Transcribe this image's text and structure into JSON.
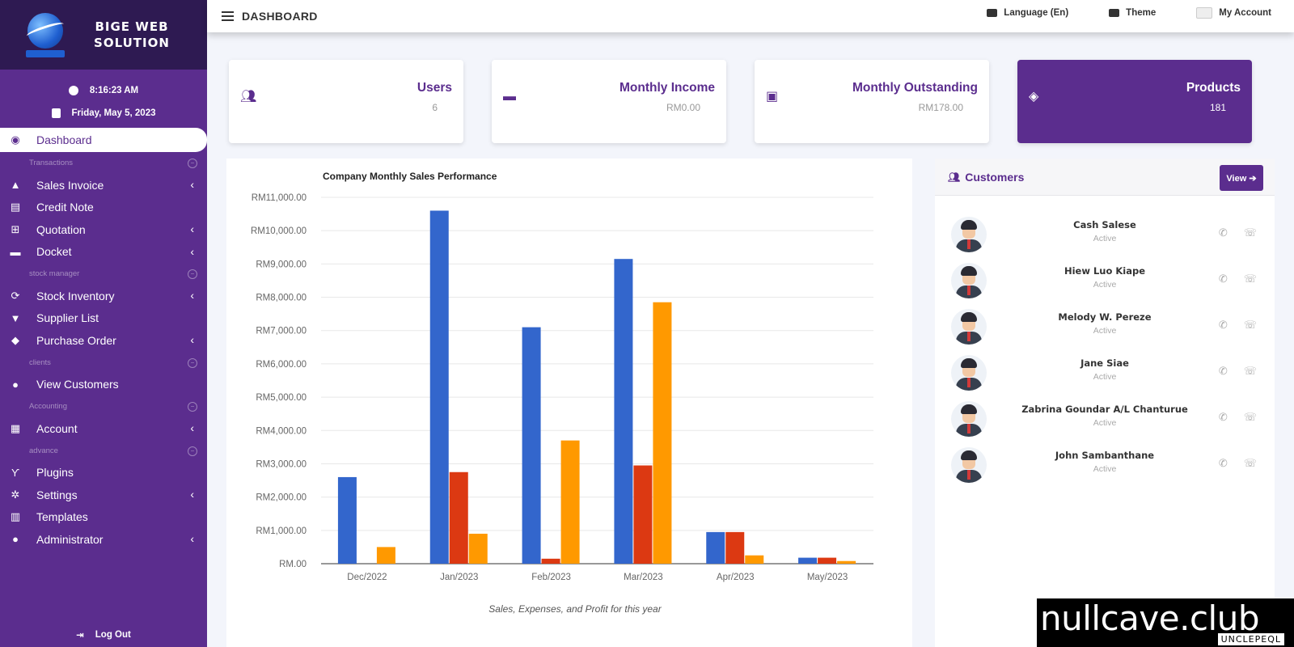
{
  "brand": {
    "title_line1": "BIGE WEB",
    "title_line2": "SOLUTION"
  },
  "clock": {
    "time": "8:16:23 AM",
    "date": "Friday, May 5, 2023"
  },
  "header": {
    "page_title": "DASHBOARD",
    "language": "Language (En)",
    "theme": "Theme",
    "account": "My Account"
  },
  "sidebar": {
    "dashboard": "Dashboard",
    "sections": {
      "transactions": "Transactions",
      "stock": "stock manager",
      "clients": "clients",
      "accounting": "Accounting",
      "advance": "advance"
    },
    "items": {
      "sales_invoice": "Sales Invoice",
      "credit_note": "Credit Note",
      "quotation": "Quotation",
      "docket": "Docket",
      "stock_inventory": "Stock Inventory",
      "supplier_list": "Supplier List",
      "purchase_order": "Purchase Order",
      "view_customers": "View Customers",
      "account": "Account",
      "plugins": "Plugins",
      "settings": "Settings",
      "templates": "Templates",
      "administrator": "Administrator"
    },
    "logout": "Log Out"
  },
  "cards": [
    {
      "title": "Users",
      "value": "6"
    },
    {
      "title": "Monthly Income",
      "value": "RM0.00"
    },
    {
      "title": "Monthly Outstanding",
      "value": "RM178.00"
    },
    {
      "title": "Products",
      "value": "181"
    }
  ],
  "chart_data": {
    "type": "bar",
    "title": "Company Monthly Sales Performance",
    "caption": "Sales, Expenses, and Profit for this year",
    "categories": [
      "Dec/2022",
      "Jan/2023",
      "Feb/2023",
      "Mar/2023",
      "Apr/2023",
      "May/2023"
    ],
    "series": [
      {
        "name": "Sales",
        "color": "#3366cc",
        "values": [
          2600,
          10600,
          7100,
          9150,
          950,
          180
        ]
      },
      {
        "name": "Expenses",
        "color": "#dc3912",
        "values": [
          0,
          2750,
          150,
          2950,
          950,
          180
        ]
      },
      {
        "name": "Profit",
        "color": "#ff9900",
        "values": [
          500,
          900,
          3700,
          7850,
          250,
          80
        ]
      }
    ],
    "yticks": [
      "RM.00",
      "RM1,000.00",
      "RM2,000.00",
      "RM3,000.00",
      "RM4,000.00",
      "RM5,000.00",
      "RM6,000.00",
      "RM7,000.00",
      "RM8,000.00",
      "RM9,000.00",
      "RM10,000.00",
      "RM11,000.00"
    ],
    "ylim": [
      0,
      11000
    ],
    "xlabel": "",
    "ylabel": ""
  },
  "customers": {
    "title": "Customers",
    "view_label": "View",
    "list": [
      {
        "name": "Cash Salese",
        "status": "Active"
      },
      {
        "name": "Hiew Luo Kiape",
        "status": "Active"
      },
      {
        "name": "Melody W. Pereze",
        "status": "Active"
      },
      {
        "name": "Jane Siae",
        "status": "Active"
      },
      {
        "name": "Zabrina Goundar A/L Chanturue",
        "status": "Active"
      },
      {
        "name": "John Sambanthane",
        "status": "Active"
      }
    ]
  },
  "watermark": {
    "big": "nullcave.club",
    "small": "UNCLEPEQL"
  }
}
